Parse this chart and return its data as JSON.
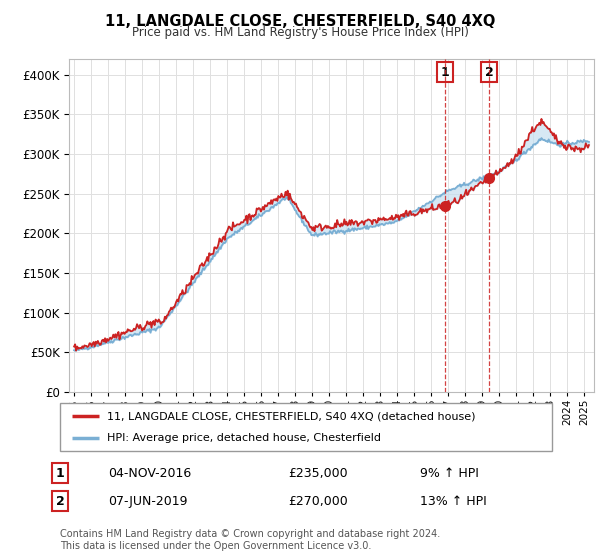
{
  "title": "11, LANGDALE CLOSE, CHESTERFIELD, S40 4XQ",
  "subtitle": "Price paid vs. HM Land Registry's House Price Index (HPI)",
  "ytick_values": [
    0,
    50000,
    100000,
    150000,
    200000,
    250000,
    300000,
    350000,
    400000
  ],
  "ylim": [
    0,
    420000
  ],
  "hpi_color": "#7aafd4",
  "hpi_fill_color": "#c5dff0",
  "price_color": "#cc2222",
  "marker1_date": 2016.84,
  "marker1_price": 235000,
  "marker2_date": 2019.44,
  "marker2_price": 270000,
  "legend_line1": "11, LANGDALE CLOSE, CHESTERFIELD, S40 4XQ (detached house)",
  "legend_line2": "HPI: Average price, detached house, Chesterfield",
  "table_row1_num": "1",
  "table_row1_date": "04-NOV-2016",
  "table_row1_price": "£235,000",
  "table_row1_hpi": "9% ↑ HPI",
  "table_row2_num": "2",
  "table_row2_date": "07-JUN-2019",
  "table_row2_price": "£270,000",
  "table_row2_hpi": "13% ↑ HPI",
  "footnote": "Contains HM Land Registry data © Crown copyright and database right 2024.\nThis data is licensed under the Open Government Licence v3.0.",
  "grid_color": "#e0e0e0"
}
